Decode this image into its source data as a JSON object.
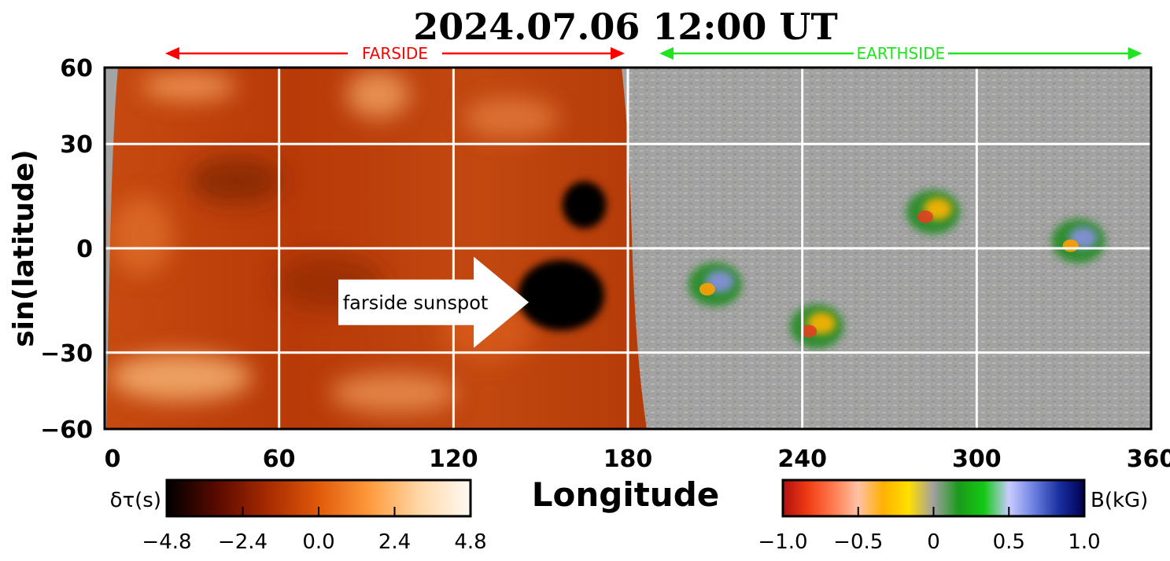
{
  "chart_data": {
    "type": "heatmap",
    "title": "2024.07.06  12:00 UT",
    "xlabel": "Longitude",
    "ylabel": "sin(latitude)",
    "xlim": [
      0,
      360
    ],
    "ylim": [
      -60,
      60
    ],
    "y_scale": "sine of latitude",
    "grid": true,
    "x_ticks": [
      0,
      60,
      120,
      180,
      240,
      300,
      360
    ],
    "y_ticks": [
      60,
      30,
      0,
      -30,
      -60
    ],
    "x_tick_labels": [
      "0",
      "60",
      "120",
      "180",
      "240",
      "300",
      "360"
    ],
    "y_tick_labels": [
      "60",
      "30",
      "0",
      "−30",
      "−60"
    ],
    "regions": [
      {
        "label": "FARSIDE",
        "lon_range": [
          10,
          180
        ],
        "color": "#ff0000"
      },
      {
        "label": "EARTHSIDE",
        "lon_range": [
          180,
          358
        ],
        "color": "#1ee61e"
      }
    ],
    "annotations": [
      {
        "text": "farside sunspot",
        "pointing_to_lon": 147,
        "pointing_to_lat": -15
      }
    ],
    "features": [
      {
        "name": "farside-sunspot",
        "side": "farside",
        "lon": 157,
        "lat": -13,
        "dtau": -4.8
      },
      {
        "name": "farside-dark-patch",
        "side": "farside",
        "lon": 165,
        "lat": 12,
        "dtau": -4.0
      },
      {
        "name": "earthside-active-region-1",
        "side": "earthside",
        "lon": 210,
        "lat": -10,
        "b_kg": 0.5
      },
      {
        "name": "earthside-active-region-2",
        "side": "earthside",
        "lon": 245,
        "lat": -22,
        "b_kg": -0.5
      },
      {
        "name": "earthside-active-region-3",
        "side": "earthside",
        "lon": 285,
        "lat": 10,
        "b_kg": -0.5
      },
      {
        "name": "earthside-active-region-4",
        "side": "earthside",
        "lon": 335,
        "lat": 2,
        "b_kg": 0.5
      }
    ],
    "colorbars": [
      {
        "label": "δτ(s)",
        "ticks": [
          -4.8,
          -2.4,
          0.0,
          2.4,
          4.8
        ],
        "tick_labels": [
          "−4.8",
          "−2.4",
          "0.0",
          "2.4",
          "4.8"
        ],
        "range": [
          -4.8,
          4.8
        ],
        "colors": [
          "#000000",
          "#5a0a00",
          "#a82a00",
          "#e05a0a",
          "#ff9a3c",
          "#ffd8a8",
          "#fffaf4"
        ]
      },
      {
        "label": "B(kG)",
        "ticks": [
          -1.0,
          -0.5,
          0,
          0.5,
          1.0
        ],
        "tick_labels": [
          "−1.0",
          "−0.5",
          "0",
          "0.5",
          "1.0"
        ],
        "range": [
          -1.0,
          1.0
        ],
        "colors": [
          "#b01010",
          "#f03c14",
          "#ff7a50",
          "#ffc2a4",
          "#ffb000",
          "#ffe000",
          "#a0a0a0",
          "#1a9a1a",
          "#14c814",
          "#c8ccff",
          "#6c80e0",
          "#1830a0",
          "#000050"
        ]
      }
    ]
  }
}
